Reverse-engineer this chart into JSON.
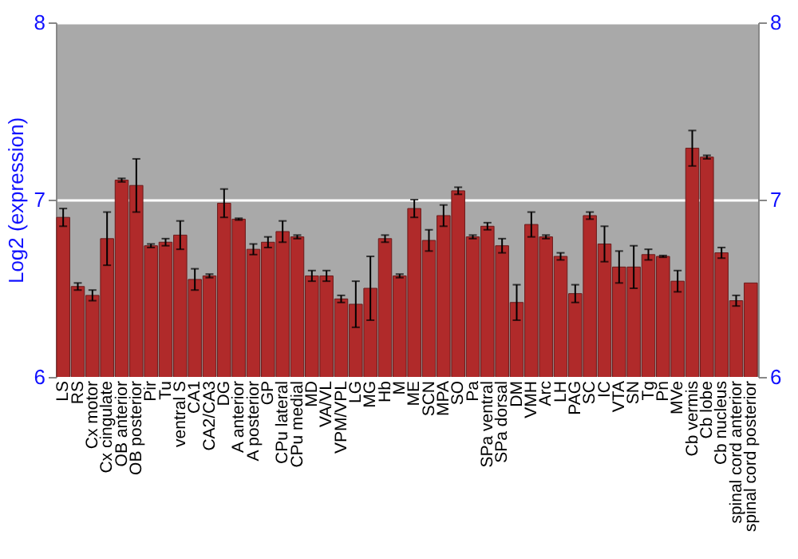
{
  "chart_data": {
    "type": "bar",
    "ylabel": "Log2 (expression)",
    "categories": [
      "LS",
      "RS",
      "Cx motor",
      "Cx cingulate",
      "OB anterior",
      "OB posterior",
      "Pir",
      "Tu",
      "ventral S",
      "CA1",
      "CA2/CA3",
      "DG",
      "A anterior",
      "A posterior",
      "GP",
      "CPu lateral",
      "CPu medial",
      "MD",
      "VA/VL",
      "VPM/VPL",
      "LG",
      "MG",
      "Hb",
      "M",
      "ME",
      "SCN",
      "MPA",
      "SO",
      "Pa",
      "SPa ventral",
      "SPa dorsal",
      "DM",
      "VMH",
      "Arc",
      "LH",
      "PAG",
      "SC",
      "IC",
      "VTA",
      "SN",
      "Tg",
      "Pn",
      "MVe",
      "Cb vermis",
      "Cb lobe",
      "Cb nucleus",
      "spinal cord anterior",
      "spinal cord posterior"
    ],
    "values": [
      6.9,
      6.51,
      6.46,
      6.78,
      7.11,
      7.08,
      6.74,
      6.76,
      6.8,
      6.55,
      6.57,
      6.98,
      6.89,
      6.72,
      6.76,
      6.82,
      6.79,
      6.57,
      6.57,
      6.44,
      6.41,
      6.5,
      6.78,
      6.57,
      6.95,
      6.77,
      6.91,
      7.05,
      6.79,
      6.85,
      6.74,
      6.42,
      6.86,
      6.79,
      6.68,
      6.47,
      6.91,
      6.75,
      6.62,
      6.62,
      6.69,
      6.68,
      6.54,
      7.29,
      7.24,
      6.7,
      6.43,
      6.53
    ],
    "errors": [
      0.05,
      0.02,
      0.03,
      0.15,
      0.01,
      0.15,
      0.01,
      0.02,
      0.08,
      0.06,
      0.01,
      0.08,
      0.005,
      0.03,
      0.03,
      0.06,
      0.01,
      0.03,
      0.03,
      0.02,
      0.13,
      0.18,
      0.02,
      0.01,
      0.05,
      0.06,
      0.06,
      0.02,
      0.01,
      0.02,
      0.04,
      0.1,
      0.07,
      0.01,
      0.02,
      0.05,
      0.02,
      0.1,
      0.09,
      0.12,
      0.03,
      0.005,
      0.06,
      0.1,
      0.01,
      0.03,
      0.03,
      null
    ],
    "color": "#b02a2a",
    "ylim": [
      6,
      8
    ],
    "yticks": [
      6,
      7,
      8
    ],
    "y2lim": [
      6,
      8
    ],
    "y2ticks": [
      6,
      7,
      8
    ],
    "grid": "y"
  }
}
